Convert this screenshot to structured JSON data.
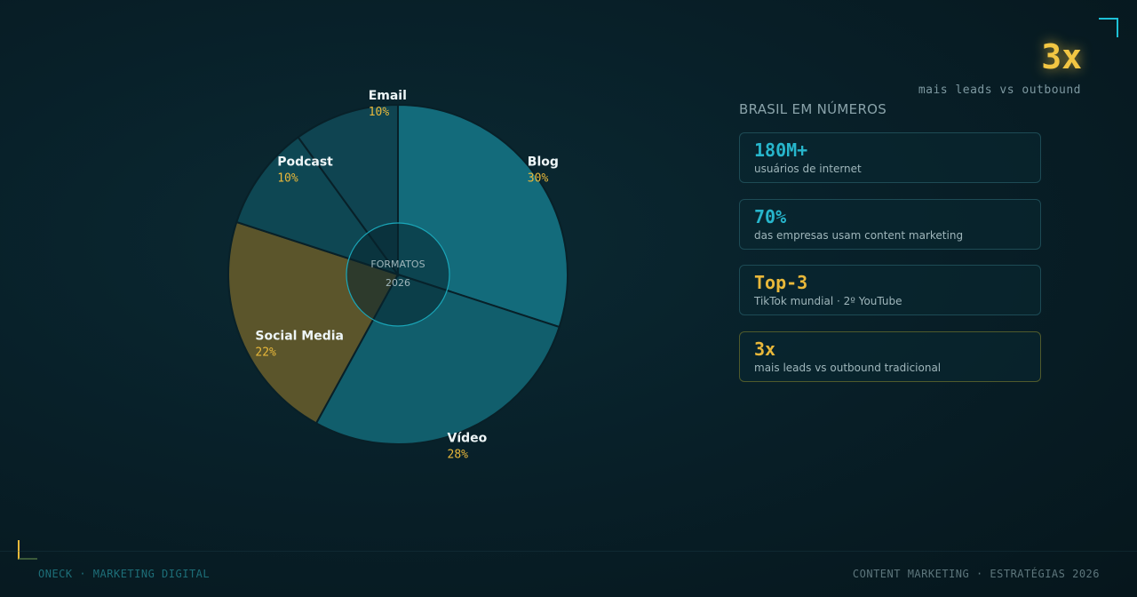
{
  "chart_data": {
    "type": "pie",
    "donut": true,
    "center_label": "FORMATOS",
    "center_sublabel": "2026",
    "slices": [
      {
        "label": "Blog",
        "value": 30,
        "value_label": "30%",
        "color": "#136b7b"
      },
      {
        "label": "Vídeo",
        "value": 28,
        "value_label": "28%",
        "color": "#115e6c"
      },
      {
        "label": "Social Media",
        "value": 22,
        "value_label": "22%",
        "color": "#5b552b"
      },
      {
        "label": "Podcast",
        "value": 10,
        "value_label": "10%",
        "color": "#0e4753"
      },
      {
        "label": "Email",
        "value": 10,
        "value_label": "10%",
        "color": "#0f4451"
      }
    ]
  },
  "hero": {
    "value": "3x",
    "caption": "mais leads vs outbound"
  },
  "stats": {
    "title": "BRASIL EM NÚMEROS",
    "cards": [
      {
        "value": "180M+",
        "label": "usuários de internet",
        "color": "#27b6cc"
      },
      {
        "value": "70%",
        "label": "das empresas usam content marketing",
        "color": "#27b6cc"
      },
      {
        "value": "Top-3",
        "label": "TikTok mundial · 2º YouTube",
        "color": "#e9b83a"
      },
      {
        "value": "3x",
        "label": "mais leads vs outbound tradicional",
        "color": "#e9b83a"
      }
    ]
  },
  "footer": {
    "left": "ONECK · MARKETING DIGITAL",
    "right": "CONTENT MARKETING · ESTRATÉGIAS 2026"
  }
}
